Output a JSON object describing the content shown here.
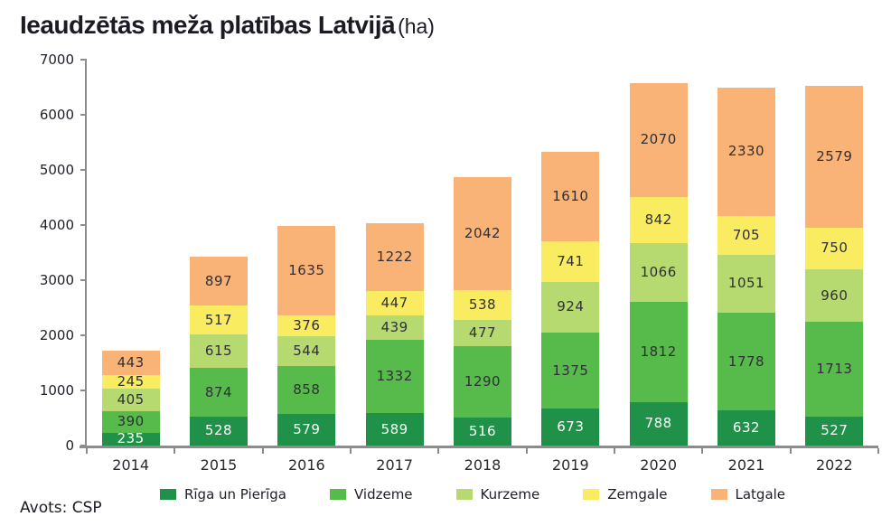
{
  "title": {
    "main": "Ieaudzētās meža platības Latvijā",
    "unit": "(ha)"
  },
  "source": "Avots: CSP",
  "colors": {
    "axis": "#8c8c8c",
    "title_text": "#1b1b24",
    "tick_text": "#1f1f28",
    "riga_un_pieriga": "#1f9149",
    "vidzeme": "#57bb4c",
    "kurzeme": "#b6da70",
    "zemgale": "#f9ec60",
    "latgale": "#fab377"
  },
  "chart_data": {
    "type": "bar",
    "stacked": true,
    "title": "Ieaudzētās meža platības Latvijā (ha)",
    "xlabel": "",
    "ylabel": "",
    "categories": [
      "2014",
      "2015",
      "2016",
      "2017",
      "2018",
      "2019",
      "2020",
      "2021",
      "2022"
    ],
    "series": [
      {
        "name": "Rīga un Pierīga",
        "color": "#1f9149",
        "label_color": "#ffffff",
        "values": [
          235,
          528,
          579,
          589,
          516,
          673,
          788,
          632,
          527
        ]
      },
      {
        "name": "Vidzeme",
        "color": "#57bb4c",
        "label_color": "#2f2f36",
        "values": [
          390,
          874,
          858,
          1332,
          1290,
          1375,
          1812,
          1778,
          1713
        ]
      },
      {
        "name": "Kurzeme",
        "color": "#b6da70",
        "label_color": "#2f2f36",
        "values": [
          405,
          615,
          544,
          439,
          477,
          924,
          1066,
          1051,
          960
        ]
      },
      {
        "name": "Zemgale",
        "color": "#f9ec60",
        "label_color": "#2f2f36",
        "values": [
          245,
          517,
          376,
          447,
          538,
          741,
          842,
          705,
          750
        ]
      },
      {
        "name": "Latgale",
        "color": "#fab377",
        "label_color": "#2f2f36",
        "values": [
          443,
          897,
          1635,
          1222,
          2042,
          1610,
          2070,
          2330,
          2579
        ]
      }
    ],
    "ylim": [
      0,
      7000
    ],
    "yticks": [
      0,
      1000,
      2000,
      3000,
      4000,
      5000,
      6000,
      7000
    ],
    "grid": false,
    "legend_position": "bottom",
    "bar_value_labels": true
  }
}
